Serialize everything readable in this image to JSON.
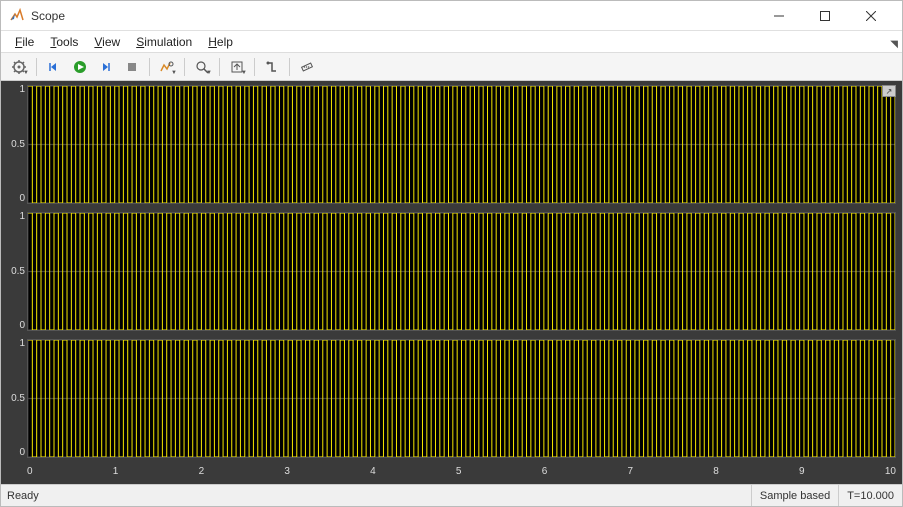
{
  "window": {
    "title": "Scope"
  },
  "menu": {
    "items": [
      {
        "label": "File",
        "accel": "F"
      },
      {
        "label": "Tools",
        "accel": "T"
      },
      {
        "label": "View",
        "accel": "V"
      },
      {
        "label": "Simulation",
        "accel": "S"
      },
      {
        "label": "Help",
        "accel": "H"
      }
    ]
  },
  "toolbar": {
    "groups": [
      [
        "settings"
      ],
      [
        "step-back",
        "run",
        "step-fwd",
        "stop"
      ],
      [
        "cursor-zoom"
      ],
      [
        "zoom"
      ],
      [
        "autoscale"
      ],
      [
        "triggers"
      ],
      [
        "measurements"
      ]
    ]
  },
  "plots": {
    "background": "#3a3a3a",
    "plot_bg": "#000000",
    "grid_color": "#3f3f3f",
    "signal_color": "#f5e600",
    "n_panels": 3,
    "x": {
      "min": 0,
      "max": 10,
      "ticks": [
        0,
        1,
        2,
        3,
        4,
        5,
        6,
        7,
        8,
        9,
        10
      ]
    },
    "y": {
      "min": 0,
      "max": 1,
      "ticks": [
        0,
        0.5,
        1
      ]
    },
    "signal": {
      "type": "square",
      "period": 0.1,
      "duty": 0.5,
      "low": 0,
      "high": 1
    }
  },
  "status": {
    "left": "Ready",
    "mode": "Sample based",
    "time": "T=10.000"
  },
  "colors": {
    "run_green": "#2a9d2a",
    "step_blue": "#2a6fd6",
    "stop_gray": "#888"
  }
}
